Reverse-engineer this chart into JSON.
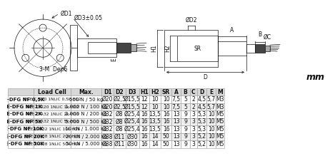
{
  "mm_label": "mm",
  "table_header": [
    "",
    "Load Cell",
    "Max.",
    "D1",
    "D2",
    "D3",
    "H1",
    "H2",
    "SR",
    "A",
    "B",
    "C",
    "D",
    "E",
    "M"
  ],
  "rows": [
    [
      "PCE-DFG NF 0,5K",
      "PCE-C-R20 1NLIC 0,5k-H12",
      "500 N / 50 kg",
      "Ø20",
      "Ø2,5",
      "Ø15,5",
      "12",
      "10",
      "10",
      "7,5",
      "5",
      "2",
      "4,5",
      "5,7",
      "M3"
    ],
    [
      "PCE-DFG NF 1K",
      "PCE-C-R20 1NLIC 1k-H12",
      "1.000 N / 100 kg",
      "Ø20",
      "Ø2,5",
      "Ø15,5",
      "12",
      "10",
      "10",
      "7,5",
      "5",
      "2",
      "4,5",
      "5,7",
      "M3"
    ],
    [
      "PCE-DFG NF 2K",
      "PCE-C-R32 1NLIC 2k-H16",
      "2.000 N / 200 kg",
      "Ø32",
      "Ø8",
      "Ø25,4",
      "16",
      "13,5",
      "16",
      "13",
      "9",
      "3",
      "5,3",
      "10",
      "M5"
    ],
    [
      "PCE-DFG NF 5K",
      "PCE-C-R32 1NLIC 5k-H16",
      "5.000 N / 500 kg",
      "Ø32",
      "Ø8",
      "Ø25,4",
      "16",
      "13,5",
      "16",
      "13",
      "9",
      "3",
      "5,3",
      "10",
      "M5"
    ],
    [
      "PCE-DFG NF 10K",
      "PCE-C-R32 1NLIC 10k-H16",
      "10 kN / 1.000 kg",
      "Ø32",
      "Ø8",
      "Ø25,4",
      "16",
      "13,5",
      "16",
      "13",
      "9",
      "3",
      "5,3",
      "10",
      "M5"
    ],
    [
      "PCE-DFG NF 20K",
      "PCE-C-R38 1NLIC 20k-H16",
      "20 kN / 2.000 kg",
      "Ø38",
      "Ø11",
      "Ø30",
      "16",
      "14",
      "50",
      "13",
      "9",
      "3",
      "5,2",
      "10",
      "M5"
    ],
    [
      "PCE-DFG NF 50K",
      "PCE-C-R38 1NLIC 50k-H16",
      "50 kN / 5.000 kg",
      "Ø38",
      "Ø11",
      "Ø30",
      "16",
      "14",
      "50",
      "13",
      "9",
      "3",
      "5,2",
      "10",
      "M5"
    ]
  ],
  "col_pcts": [
    0.082,
    0.116,
    0.095,
    0.038,
    0.037,
    0.043,
    0.03,
    0.037,
    0.033,
    0.03,
    0.027,
    0.024,
    0.028,
    0.03,
    0.026
  ],
  "header_bg": "#d8d8d8",
  "row_bg_even": "#ffffff",
  "row_bg_odd": "#eeeeee",
  "border_color": "#999999",
  "dark": "#111111",
  "fig_bg": "#ffffff"
}
